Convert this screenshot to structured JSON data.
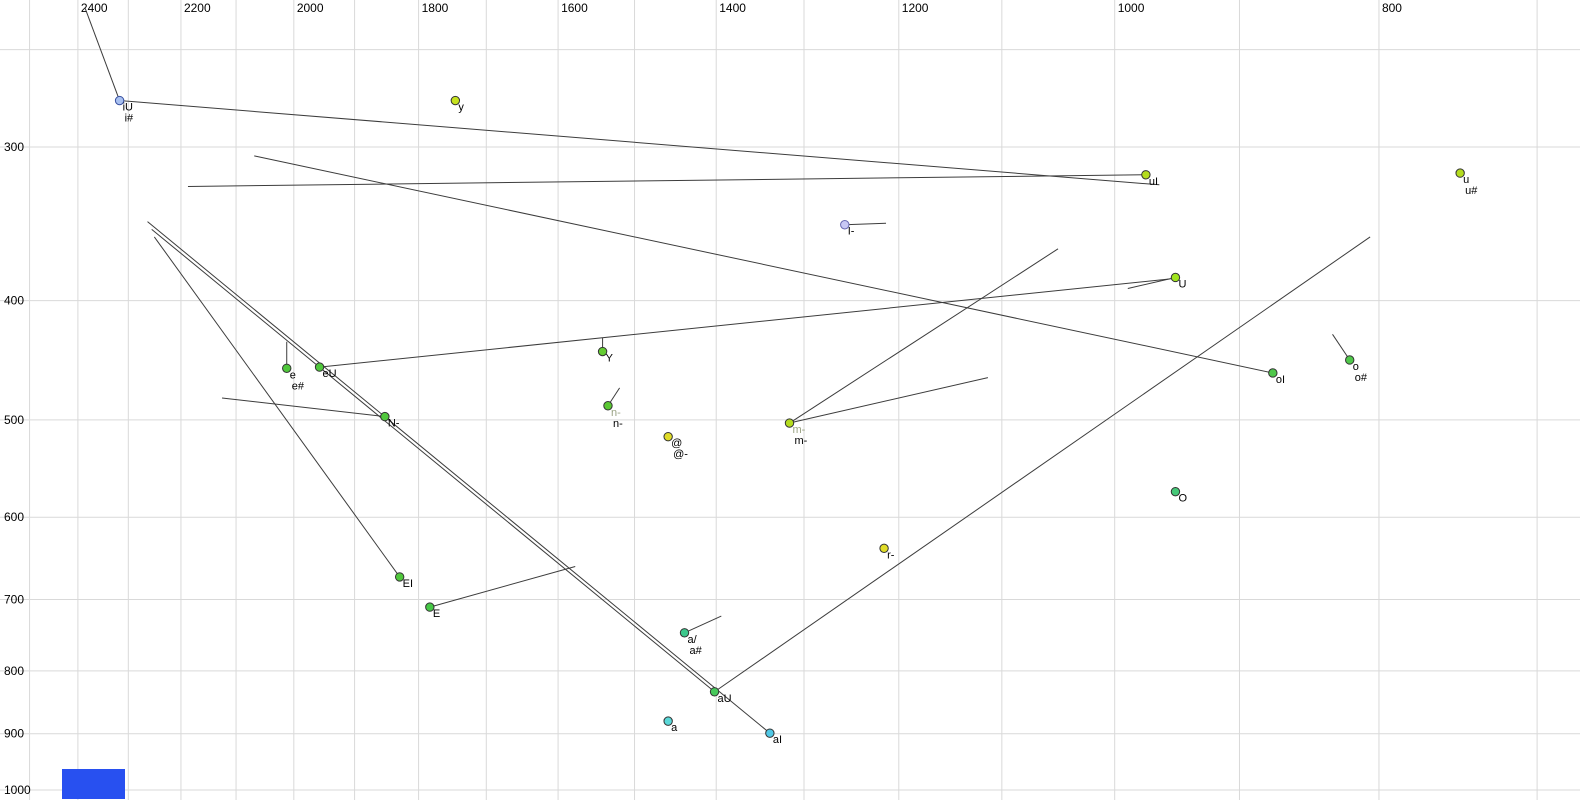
{
  "chart_data": {
    "type": "scatter",
    "title": "",
    "xlabel": "",
    "ylabel": "",
    "x_axis": {
      "scale": "log",
      "reversed": true,
      "ticks": [
        2400,
        2200,
        2000,
        1800,
        1600,
        1400,
        1200,
        1000,
        800
      ]
    },
    "y_axis": {
      "scale": "log",
      "increases_downward": true,
      "ticks": [
        300,
        400,
        500,
        600,
        700,
        800,
        900,
        1000
      ]
    },
    "grid": {
      "color": "#d9d9d9",
      "x_values": [
        2500,
        2400,
        2300,
        2200,
        2100,
        2000,
        1900,
        1800,
        1700,
        1600,
        1500,
        1400,
        1300,
        1200,
        1100,
        1000,
        900,
        800,
        700
      ],
      "y_values": [
        250,
        300,
        400,
        500,
        600,
        700,
        800,
        900,
        1000
      ]
    },
    "line_color": "#3c3c3c",
    "label_color": "#000000",
    "gray_label_color": "#9aa384",
    "points": [
      {
        "labels": [
          {
            "t": "iU"
          },
          {
            "t": "i#"
          }
        ],
        "f2": 2317,
        "f1": 275,
        "fill": "#a8c0f0",
        "stroke": "#3850a0"
      },
      {
        "labels": [
          {
            "t": "y"
          }
        ],
        "f2": 1745,
        "f1": 275,
        "fill": "#c6e21e"
      },
      {
        "labels": [
          {
            "t": "uI"
          }
        ],
        "f2": 974,
        "f1": 316,
        "fill": "#b4dc1e"
      },
      {
        "labels": [
          {
            "t": "u"
          },
          {
            "t": "u#"
          }
        ],
        "f2": 747,
        "f1": 315,
        "fill": "#b4dc1e"
      },
      {
        "labels": [
          {
            "t": "I-"
          }
        ],
        "f2": 1256,
        "f1": 347,
        "fill": "#c8c8f4",
        "stroke": "#6868b0"
      },
      {
        "labels": [
          {
            "t": "U"
          }
        ],
        "f2": 950,
        "f1": 383,
        "fill": "#a0e41e"
      },
      {
        "labels": [
          {
            "t": "Y"
          }
        ],
        "f2": 1541,
        "f1": 440,
        "fill": "#64cc32"
      },
      {
        "labels": [
          {
            "t": "e"
          },
          {
            "t": "e#"
          }
        ],
        "f2": 2012,
        "f1": 454,
        "fill": "#50c83c"
      },
      {
        "labels": [
          {
            "t": "eU"
          }
        ],
        "f2": 1957,
        "f1": 453,
        "fill": "#50c83c"
      },
      {
        "labels": [
          {
            "t": "n-",
            "gray": true
          },
          {
            "t": "n-"
          }
        ],
        "f2": 1534,
        "f1": 487,
        "fill": "#5ac832"
      },
      {
        "labels": [
          {
            "t": "@"
          },
          {
            "t": "@-"
          }
        ],
        "f2": 1458,
        "f1": 516,
        "fill": "#e0dc28"
      },
      {
        "labels": [
          {
            "t": "m-",
            "gray": true
          },
          {
            "t": "m-"
          }
        ],
        "f2": 1316,
        "f1": 503,
        "fill": "#b4dc1e"
      },
      {
        "labels": [
          {
            "t": "N-"
          }
        ],
        "f2": 1852,
        "f1": 497,
        "fill": "#50c83c"
      },
      {
        "labels": [
          {
            "t": "O"
          }
        ],
        "f2": 950,
        "f1": 572,
        "fill": "#46c878"
      },
      {
        "labels": [
          {
            "t": "r-"
          }
        ],
        "f2": 1215,
        "f1": 636,
        "fill": "#e0dc28"
      },
      {
        "labels": [
          {
            "t": "EI"
          }
        ],
        "f2": 1829,
        "f1": 671,
        "fill": "#50c83c"
      },
      {
        "labels": [
          {
            "t": "E"
          }
        ],
        "f2": 1783,
        "f1": 710,
        "fill": "#46c846"
      },
      {
        "labels": [
          {
            "t": "a/"
          },
          {
            "t": "a#"
          }
        ],
        "f2": 1438,
        "f1": 745,
        "fill": "#3cc88c"
      },
      {
        "labels": [
          {
            "t": "aU"
          }
        ],
        "f2": 1402,
        "f1": 832,
        "fill": "#46c85a"
      },
      {
        "labels": [
          {
            "t": "a"
          }
        ],
        "f2": 1458,
        "f1": 879,
        "fill": "#5ad8d8"
      },
      {
        "labels": [
          {
            "t": "aI"
          }
        ],
        "f2": 1338,
        "f1": 899,
        "fill": "#50c8e6"
      },
      {
        "labels": [
          {
            "t": "o"
          },
          {
            "t": "o#"
          }
        ],
        "f2": 820,
        "f1": 447,
        "fill": "#50c84b"
      },
      {
        "labels": [
          {
            "t": "oI"
          }
        ],
        "f2": 875,
        "f1": 458,
        "fill": "#50c84b"
      }
    ],
    "trajectories": [
      {
        "from": [
          2386,
          231
        ],
        "to": [
          2317,
          275
        ]
      },
      {
        "from": [
          2317,
          275
        ],
        "to": [
          963,
          322
        ]
      },
      {
        "from": [
          974,
          316
        ],
        "to": [
          2187,
          323
        ]
      },
      {
        "from": [
          875,
          458
        ],
        "to": [
          2068,
          305
        ]
      },
      {
        "from": [
          1338,
          899
        ],
        "to": [
          2263,
          345
        ]
      },
      {
        "from": [
          1402,
          832
        ],
        "to": [
          2255,
          350
        ]
      },
      {
        "from": [
          1829,
          671
        ],
        "to": [
          2250,
          355
        ]
      },
      {
        "from": [
          1402,
          832
        ],
        "to": [
          806,
          355
        ]
      },
      {
        "from": [
          1316,
          503
        ],
        "to": [
          1049,
          363
        ]
      },
      {
        "from": [
          1316,
          503
        ],
        "to": [
          1113,
          462
        ]
      },
      {
        "from": [
          1852,
          497
        ],
        "to": [
          2125,
          480
        ]
      },
      {
        "from": [
          1534,
          487
        ],
        "to": [
          1519,
          471
        ]
      },
      {
        "from": [
          1256,
          347
        ],
        "to": [
          1213,
          346
        ]
      },
      {
        "from": [
          950,
          383
        ],
        "to": [
          989,
          391
        ]
      },
      {
        "from": [
          820,
          447
        ],
        "to": [
          832,
          426
        ]
      },
      {
        "from": [
          1438,
          745
        ],
        "to": [
          1394,
          722
        ]
      },
      {
        "from": [
          1783,
          710
        ],
        "to": [
          1577,
          658
        ]
      },
      {
        "from": [
          1957,
          453
        ],
        "to": [
          954,
          384
        ]
      },
      {
        "from": [
          2012,
          454
        ],
        "to": [
          2012,
          432
        ]
      },
      {
        "from": [
          1541,
          440
        ],
        "to": [
          1541,
          429
        ]
      }
    ]
  },
  "decorations": {
    "highlight_color": "#2850f0"
  }
}
